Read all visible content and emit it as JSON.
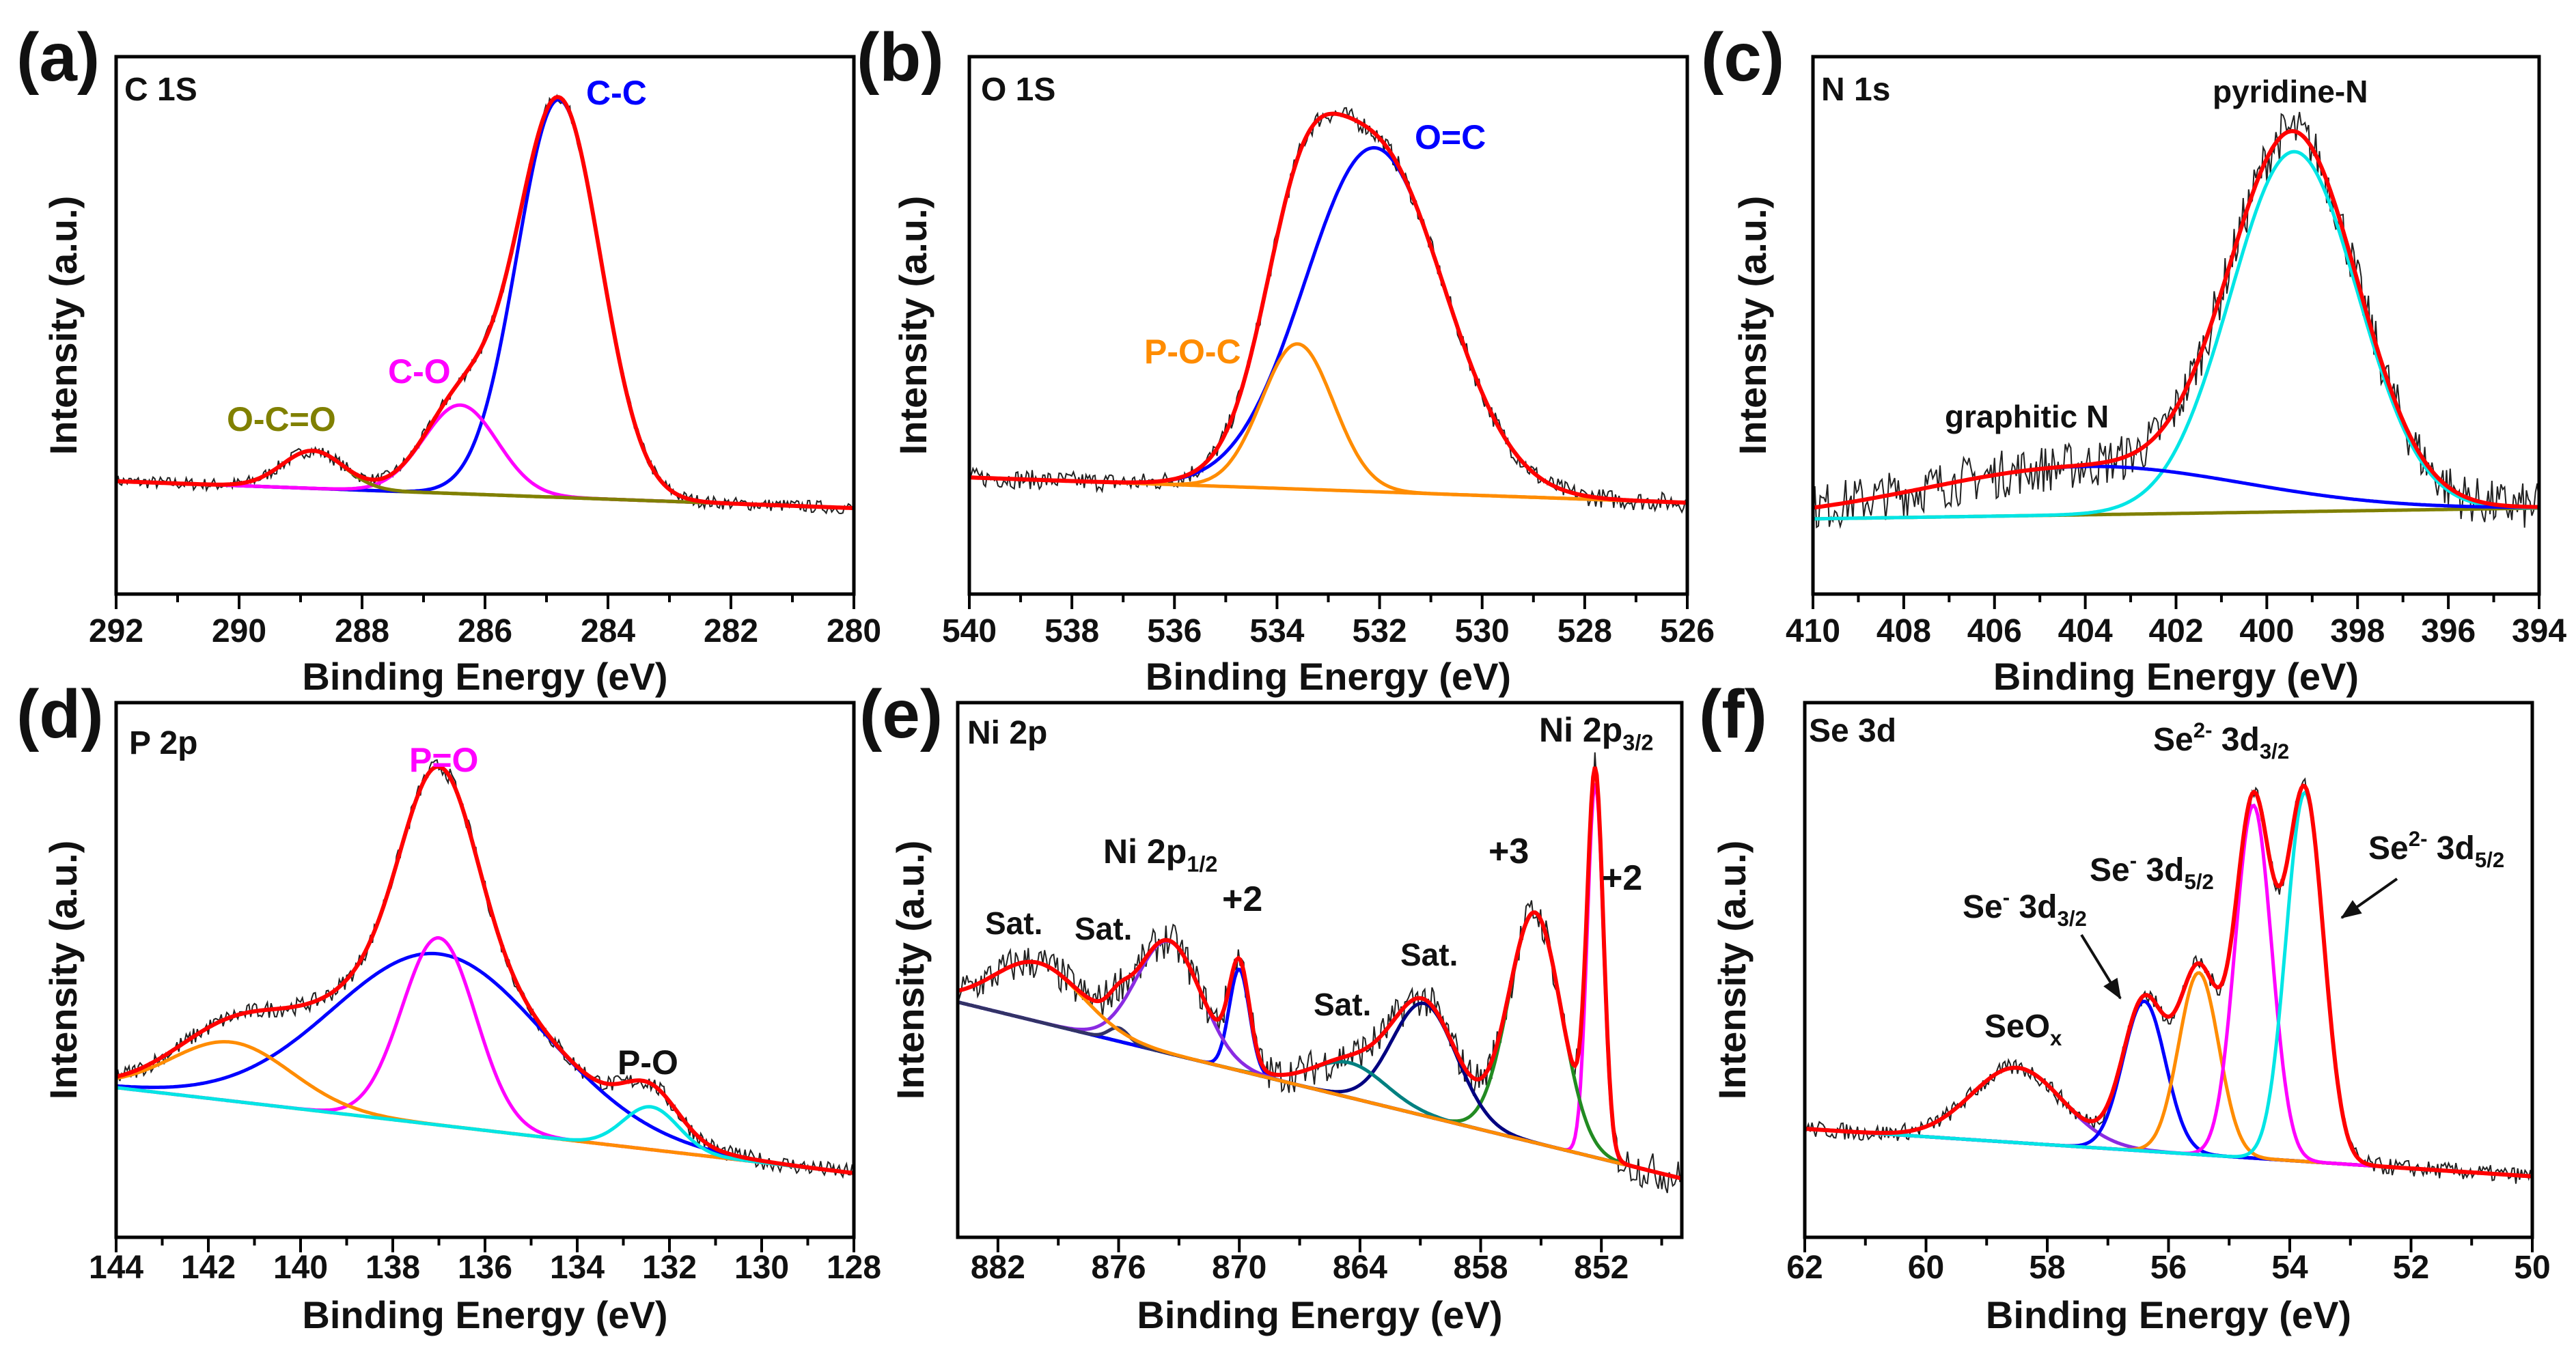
{
  "chart_data": [
    {
      "type": "line",
      "panel_label": "(a)",
      "title": "C 1S",
      "xlabel": "Binding Energy (eV)",
      "ylabel": "Intensity (a.u.)",
      "xlim": [
        292,
        280
      ],
      "ylim": [
        0,
        100
      ],
      "xticks": [
        292,
        290,
        288,
        286,
        284,
        282,
        280
      ],
      "baseline": [
        21,
        16
      ],
      "baseline_color": "#808000",
      "components": [
        {
          "center": 284.8,
          "amplitude": 74,
          "sigma": 0.68,
          "color": "#0000ff"
        },
        {
          "center": 286.4,
          "amplitude": 16.5,
          "sigma": 0.6,
          "color": "#ff00ff"
        },
        {
          "center": 288.8,
          "amplitude": 7,
          "sigma": 0.5,
          "color": "#808000"
        }
      ],
      "annotations": [
        {
          "segments": [
            {
              "t": "C-C"
            }
          ],
          "color": "#0000ff"
        },
        {
          "segments": [
            {
              "t": "C-O"
            }
          ],
          "color": "#ff00ff"
        },
        {
          "segments": [
            {
              "t": "O-C=O"
            }
          ],
          "color": "#808000"
        }
      ]
    },
    {
      "type": "line",
      "panel_label": "(b)",
      "title": "O 1S",
      "xlabel": "Binding Energy (eV)",
      "ylabel": "Intensity (a.u.)",
      "xlim": [
        540,
        526
      ],
      "ylim": [
        0,
        100
      ],
      "xticks": [
        540,
        538,
        536,
        534,
        532,
        530,
        528,
        526
      ],
      "baseline": [
        21.7,
        17
      ],
      "baseline_color": "#ff8c00",
      "components": [
        {
          "center": 532.1,
          "amplitude": 64,
          "sigma": 1.35,
          "color": "#0000ff"
        },
        {
          "center": 533.6,
          "amplitude": 27,
          "sigma": 0.7,
          "color": "#ff8c00"
        }
      ],
      "annotations": [
        {
          "segments": [
            {
              "t": "O=C"
            }
          ],
          "color": "#0000ff"
        },
        {
          "segments": [
            {
              "t": "P-O-C"
            }
          ],
          "color": "#ff8c00"
        }
      ]
    },
    {
      "type": "line",
      "panel_label": "(c)",
      "title": "N 1s",
      "xlabel": "Binding Energy (eV)",
      "ylabel": "Intensity (a.u.)",
      "xlim": [
        410,
        394
      ],
      "ylim": [
        0,
        100
      ],
      "xticks": [
        410,
        408,
        406,
        404,
        402,
        400,
        398,
        396,
        394
      ],
      "baseline": [
        14,
        16
      ],
      "baseline_color": "#808000",
      "components": [
        {
          "center": 399.4,
          "amplitude": 67,
          "sigma": 1.4,
          "color": "#00e5e5"
        },
        {
          "center": 404,
          "amplitude": 9,
          "sigma": 3.5,
          "color": "#0000ff"
        }
      ],
      "annotations": [
        {
          "segments": [
            {
              "t": "pyridine-N"
            }
          ],
          "color": "#111111"
        },
        {
          "segments": [
            {
              "t": "graphitic N"
            }
          ],
          "color": "#111111"
        }
      ]
    },
    {
      "type": "line",
      "panel_label": "(d)",
      "title": "P 2p",
      "xlabel": "Binding Energy (eV)",
      "ylabel": "Intensity (a.u.)",
      "xlim": [
        144,
        128
      ],
      "ylim": [
        0,
        100
      ],
      "xticks": [
        144,
        142,
        140,
        138,
        136,
        134,
        132,
        130,
        128
      ],
      "baseline": [
        28,
        12
      ],
      "baseline_color": "#ff8c00",
      "components": [
        {
          "center": 137,
          "amplitude": 32,
          "sigma": 2.3,
          "color": "#0000ff"
        },
        {
          "center": 137,
          "amplitude": 35,
          "sigma": 0.8,
          "color": "#ff00ff"
        },
        {
          "center": 141.5,
          "amplitude": 11,
          "sigma": 1.3,
          "color": "#ff8c00"
        },
        {
          "center": 132.4,
          "amplitude": 8,
          "sigma": 0.6,
          "color": "#00e5e5"
        }
      ],
      "annotations": [
        {
          "segments": [
            {
              "t": "P=O"
            }
          ],
          "color": "#ff00ff"
        },
        {
          "segments": [
            {
              "t": "P-O"
            }
          ],
          "color": "#111111"
        }
      ]
    },
    {
      "type": "line",
      "panel_label": "(e)",
      "title": "Ni 2p",
      "xlabel": "Binding Energy (eV)",
      "ylabel": "Intensity (a.u.)",
      "xlim": [
        884,
        848
      ],
      "ylim": [
        0,
        100
      ],
      "xticks": [
        882,
        876,
        870,
        864,
        858,
        852
      ],
      "baseline": [
        44,
        11
      ],
      "baseline_color": "#6a3fb0",
      "components": [
        {
          "center": 852.3,
          "amplitude": 70,
          "sigma": 0.4,
          "color": "#ff00ff"
        },
        {
          "center": 855.3,
          "amplitude": 43,
          "sigma": 1.3,
          "color": "#228b22"
        },
        {
          "center": 860.8,
          "amplitude": 21,
          "sigma": 1.6,
          "color": "#000080"
        },
        {
          "center": 864.5,
          "amplitude": 6.5,
          "sigma": 1.8,
          "color": "#008080"
        },
        {
          "center": 870,
          "amplitude": 19,
          "sigma": 0.5,
          "color": "#0000ff"
        },
        {
          "center": 873.5,
          "amplitude": 21,
          "sigma": 1.6,
          "color": "#8a2be2"
        },
        {
          "center": 876,
          "amplitude": 2.5,
          "sigma": 0.5,
          "color": "#333366"
        },
        {
          "center": 880,
          "amplitude": 11,
          "sigma": 2.2,
          "color": "#ff8c00"
        }
      ],
      "annotations": [
        {
          "segments": [
            {
              "t": "Ni 2p"
            },
            {
              "t": "3/2",
              "sub": true
            }
          ],
          "color": "#111111"
        },
        {
          "segments": [
            {
              "t": "Ni 2p"
            },
            {
              "t": "1/2",
              "sub": true
            }
          ],
          "color": "#111111"
        },
        {
          "segments": [
            {
              "t": "+2"
            }
          ],
          "color": "#111111"
        },
        {
          "segments": [
            {
              "t": "+3"
            }
          ],
          "color": "#111111"
        },
        {
          "segments": [
            {
              "t": "+2"
            }
          ],
          "color": "#111111"
        },
        {
          "segments": [
            {
              "t": "Sat."
            }
          ],
          "color": "#111111"
        },
        {
          "segments": [
            {
              "t": "Sat."
            }
          ],
          "color": "#111111"
        },
        {
          "segments": [
            {
              "t": "Sat."
            }
          ],
          "color": "#111111"
        },
        {
          "segments": [
            {
              "t": "Sat."
            }
          ],
          "color": "#111111"
        }
      ]
    },
    {
      "type": "line",
      "panel_label": "(f)",
      "title": "Se 3d",
      "xlabel": "Binding Energy (eV)",
      "ylabel": "Intensity (a.u.)",
      "xlim": [
        62,
        50
      ],
      "ylim": [
        0,
        100
      ],
      "xticks": [
        62,
        60,
        58,
        56,
        54,
        52,
        50
      ],
      "baseline": [
        20.3,
        11.4
      ],
      "baseline_color": "#0000ff",
      "components": [
        {
          "center": 58.5,
          "amplitude": 14,
          "sigma": 0.75,
          "color": "#8a2be2"
        },
        {
          "center": 56.4,
          "amplitude": 28,
          "sigma": 0.35,
          "color": "#0000ff"
        },
        {
          "center": 55.5,
          "amplitude": 34,
          "sigma": 0.33,
          "color": "#ff8c00"
        },
        {
          "center": 54.6,
          "amplitude": 66,
          "sigma": 0.3,
          "color": "#ff00ff"
        },
        {
          "center": 53.75,
          "amplitude": 69,
          "sigma": 0.31,
          "color": "#00e5e5"
        }
      ],
      "annotations": [
        {
          "segments": [
            {
              "t": "Se"
            },
            {
              "t": "2-",
              "sup": true
            },
            {
              "t": " 3d"
            },
            {
              "t": "3/2",
              "sub": true
            }
          ],
          "color": "#111111"
        },
        {
          "segments": [
            {
              "t": "Se"
            },
            {
              "t": "2-",
              "sup": true
            },
            {
              "t": " 3d"
            },
            {
              "t": "5/2",
              "sub": true
            }
          ],
          "color": "#111111"
        },
        {
          "segments": [
            {
              "t": "Se"
            },
            {
              "t": "-",
              "sup": true
            },
            {
              "t": " 3d"
            },
            {
              "t": "5/2",
              "sub": true
            }
          ],
          "color": "#111111"
        },
        {
          "segments": [
            {
              "t": "Se"
            },
            {
              "t": "-",
              "sup": true
            },
            {
              "t": " 3d"
            },
            {
              "t": "3/2",
              "sub": true
            }
          ],
          "color": "#111111"
        },
        {
          "segments": [
            {
              "t": "SeO"
            },
            {
              "t": "x",
              "sub": true
            }
          ],
          "color": "#111111"
        }
      ]
    }
  ],
  "colors": {
    "envelope": "#ff0000",
    "raw": "#222222",
    "frame": "#000000"
  }
}
